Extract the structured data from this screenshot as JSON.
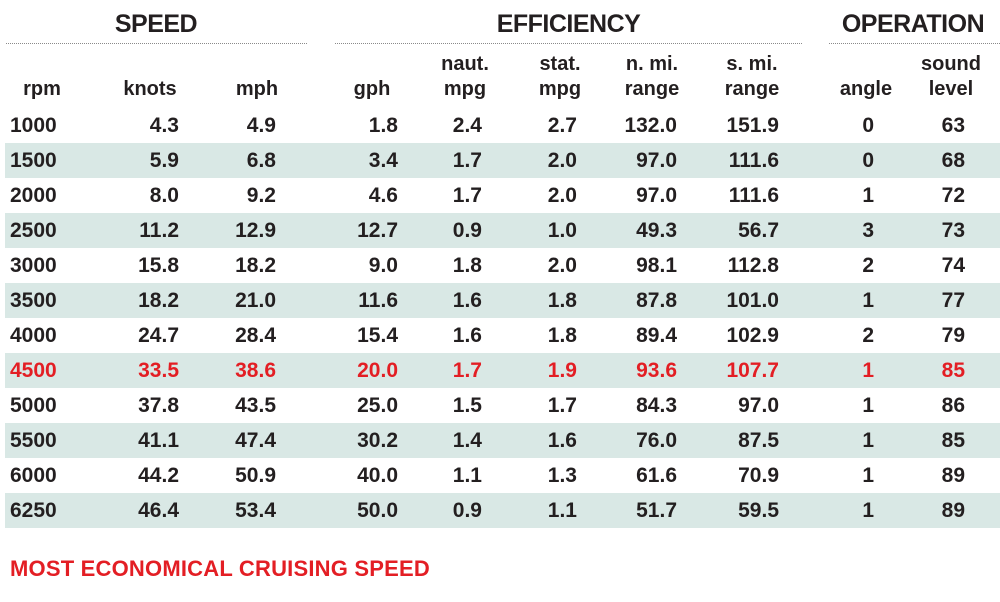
{
  "groups": {
    "speed": "SPEED",
    "efficiency": "EFFICIENCY",
    "operation": "OPERATION"
  },
  "columns": [
    {
      "key": "rpm",
      "line1": "",
      "line2": "rpm"
    },
    {
      "key": "knots",
      "line1": "",
      "line2": "knots"
    },
    {
      "key": "mph",
      "line1": "",
      "line2": "mph"
    },
    {
      "key": "gph",
      "line1": "",
      "line2": "gph"
    },
    {
      "key": "naut_mpg",
      "line1": "naut.",
      "line2": "mpg"
    },
    {
      "key": "stat_mpg",
      "line1": "stat.",
      "line2": "mpg"
    },
    {
      "key": "n_mi_range",
      "line1": "n. mi.",
      "line2": "range"
    },
    {
      "key": "s_mi_range",
      "line1": "s. mi.",
      "line2": "range"
    },
    {
      "key": "angle",
      "line1": "",
      "line2": "angle"
    },
    {
      "key": "sound_level",
      "line1": "sound",
      "line2": "level"
    }
  ],
  "rows": [
    [
      "1000",
      "4.3",
      "4.9",
      "1.8",
      "2.4",
      "2.7",
      "132.0",
      "151.9",
      "0",
      "63"
    ],
    [
      "1500",
      "5.9",
      "6.8",
      "3.4",
      "1.7",
      "2.0",
      "97.0",
      "111.6",
      "0",
      "68"
    ],
    [
      "2000",
      "8.0",
      "9.2",
      "4.6",
      "1.7",
      "2.0",
      "97.0",
      "111.6",
      "1",
      "72"
    ],
    [
      "2500",
      "11.2",
      "12.9",
      "12.7",
      "0.9",
      "1.0",
      "49.3",
      "56.7",
      "3",
      "73"
    ],
    [
      "3000",
      "15.8",
      "18.2",
      "9.0",
      "1.8",
      "2.0",
      "98.1",
      "112.8",
      "2",
      "74"
    ],
    [
      "3500",
      "18.2",
      "21.0",
      "11.6",
      "1.6",
      "1.8",
      "87.8",
      "101.0",
      "1",
      "77"
    ],
    [
      "4000",
      "24.7",
      "28.4",
      "15.4",
      "1.6",
      "1.8",
      "89.4",
      "102.9",
      "2",
      "79"
    ],
    [
      "4500",
      "33.5",
      "38.6",
      "20.0",
      "1.7",
      "1.9",
      "93.6",
      "107.7",
      "1",
      "85"
    ],
    [
      "5000",
      "37.8",
      "43.5",
      "25.0",
      "1.5",
      "1.7",
      "84.3",
      "97.0",
      "1",
      "86"
    ],
    [
      "5500",
      "41.1",
      "47.4",
      "30.2",
      "1.4",
      "1.6",
      "76.0",
      "87.5",
      "1",
      "85"
    ],
    [
      "6000",
      "44.2",
      "50.9",
      "40.0",
      "1.1",
      "1.3",
      "61.6",
      "70.9",
      "1",
      "89"
    ],
    [
      "6250",
      "46.4",
      "53.4",
      "50.0",
      "0.9",
      "1.1",
      "51.7",
      "59.5",
      "1",
      "89"
    ]
  ],
  "highlight_row_index": 7,
  "footer": "MOST ECONOMICAL CRUISING SPEED",
  "colors": {
    "text": "#231f20",
    "highlight": "#e31e24",
    "stripe": "#d9e8e5",
    "rule": "#8a8a8a"
  },
  "chart_data": {
    "type": "table",
    "title": "",
    "column_groups": [
      {
        "name": "SPEED",
        "columns": [
          "rpm",
          "knots",
          "mph"
        ]
      },
      {
        "name": "EFFICIENCY",
        "columns": [
          "gph",
          "naut. mpg",
          "stat. mpg",
          "n. mi. range",
          "s. mi. range"
        ]
      },
      {
        "name": "OPERATION",
        "columns": [
          "angle",
          "sound level"
        ]
      }
    ],
    "headers": [
      "rpm",
      "knots",
      "mph",
      "gph",
      "naut. mpg",
      "stat. mpg",
      "n. mi. range",
      "s. mi. range",
      "angle",
      "sound level"
    ],
    "data": [
      [
        1000,
        4.3,
        4.9,
        1.8,
        2.4,
        2.7,
        132.0,
        151.9,
        0,
        63
      ],
      [
        1500,
        5.9,
        6.8,
        3.4,
        1.7,
        2.0,
        97.0,
        111.6,
        0,
        68
      ],
      [
        2000,
        8.0,
        9.2,
        4.6,
        1.7,
        2.0,
        97.0,
        111.6,
        1,
        72
      ],
      [
        2500,
        11.2,
        12.9,
        12.7,
        0.9,
        1.0,
        49.3,
        56.7,
        3,
        73
      ],
      [
        3000,
        15.8,
        18.2,
        9.0,
        1.8,
        2.0,
        98.1,
        112.8,
        2,
        74
      ],
      [
        3500,
        18.2,
        21.0,
        11.6,
        1.6,
        1.8,
        87.8,
        101.0,
        1,
        77
      ],
      [
        4000,
        24.7,
        28.4,
        15.4,
        1.6,
        1.8,
        89.4,
        102.9,
        2,
        79
      ],
      [
        4500,
        33.5,
        38.6,
        20.0,
        1.7,
        1.9,
        93.6,
        107.7,
        1,
        85
      ],
      [
        5000,
        37.8,
        43.5,
        25.0,
        1.5,
        1.7,
        84.3,
        97.0,
        1,
        86
      ],
      [
        5500,
        41.1,
        47.4,
        30.2,
        1.4,
        1.6,
        76.0,
        87.5,
        1,
        85
      ],
      [
        6000,
        44.2,
        50.9,
        40.0,
        1.1,
        1.3,
        61.6,
        70.9,
        1,
        89
      ],
      [
        6250,
        46.4,
        53.4,
        50.0,
        0.9,
        1.1,
        51.7,
        59.5,
        1,
        89
      ]
    ],
    "highlighted_row": {
      "rpm": 4500,
      "note": "MOST ECONOMICAL CRUISING SPEED"
    },
    "striped_rows": true
  }
}
